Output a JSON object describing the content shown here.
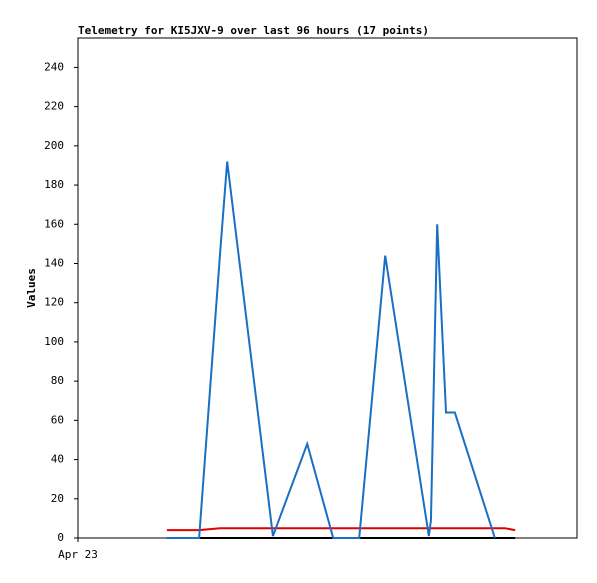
{
  "chart_data": {
    "type": "line",
    "title": "Telemetry for KI5JXV-9 over last 96 hours (17 points)",
    "y_label": "Values",
    "x": [
      17.1,
      23.3,
      27.3,
      28.7,
      37.5,
      44.1,
      49.1,
      54.1,
      59.1,
      67.5,
      67.9,
      69.1,
      70.8,
      72.5,
      80.2,
      82.1,
      84.1
    ],
    "xlim": [
      0,
      96
    ],
    "xticks": [
      {
        "value": 0,
        "label": "Apr 23"
      }
    ],
    "ylim": [
      0,
      255
    ],
    "yticks": [
      0,
      20,
      40,
      60,
      80,
      100,
      120,
      140,
      160,
      180,
      200,
      220,
      240
    ],
    "series": [
      {
        "color": "#000000",
        "values": [
          0,
          0,
          0,
          0,
          0,
          0,
          0,
          0,
          0,
          0,
          0,
          0,
          0,
          0,
          0,
          0,
          0
        ]
      },
      {
        "color": "#e00000",
        "values": [
          4,
          4,
          5,
          5,
          5,
          5,
          5,
          5,
          5,
          5,
          5,
          5,
          5,
          5,
          5,
          5,
          4
        ]
      },
      {
        "color": "#1a6fc4",
        "values": [
          0,
          0,
          144,
          192,
          1,
          48,
          0,
          0,
          144,
          1,
          9,
          160,
          64,
          64,
          0,
          null,
          null
        ]
      }
    ]
  }
}
